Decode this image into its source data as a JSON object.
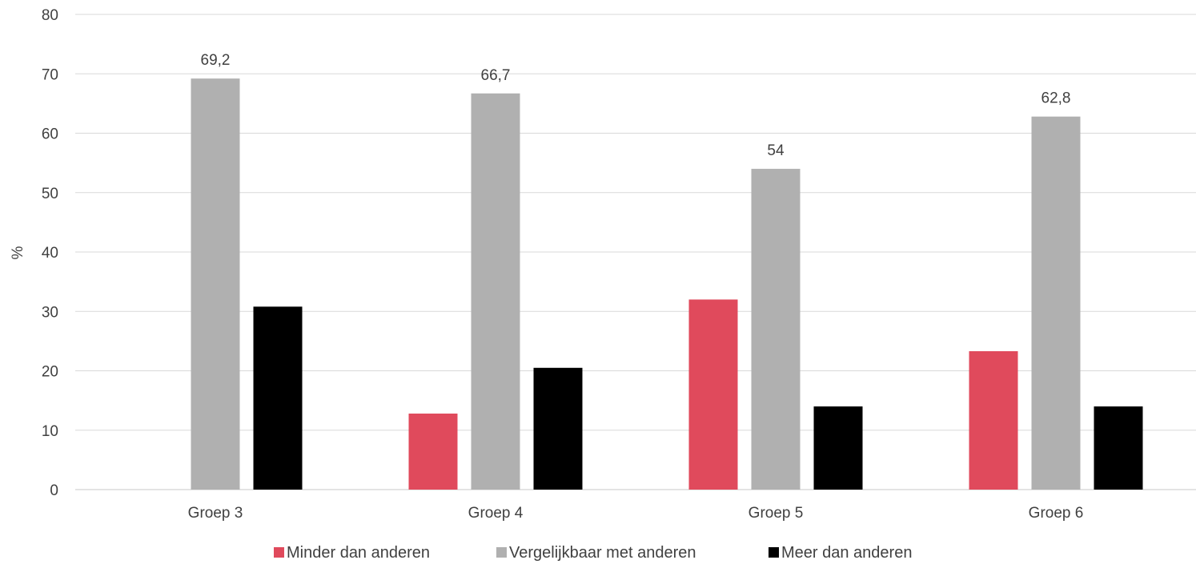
{
  "chart_data": {
    "type": "bar",
    "ylabel": "%",
    "ylim": [
      0,
      80
    ],
    "yticks": [
      "0",
      "10",
      "20",
      "30",
      "40",
      "50",
      "60",
      "70",
      "80"
    ],
    "categories": [
      "Groep 3",
      "Groep 4",
      "Groep 5",
      "Groep 6"
    ],
    "series": [
      {
        "name": "Minder dan anderen",
        "color": "#e04a5c",
        "values": [
          0,
          12.8,
          32,
          23.3
        ]
      },
      {
        "name": "Vergelijkbaar met anderen",
        "color": "#b0b0b0",
        "values": [
          69.2,
          66.7,
          54,
          62.8
        ]
      },
      {
        "name": "Meer dan anderen",
        "color": "#000000",
        "values": [
          30.8,
          20.5,
          14,
          14
        ]
      }
    ],
    "data_labels": {
      "series": 1,
      "labels": [
        "69,2",
        "66,7",
        "54",
        "62,8"
      ]
    },
    "grid": true,
    "legend_position": "bottom"
  }
}
